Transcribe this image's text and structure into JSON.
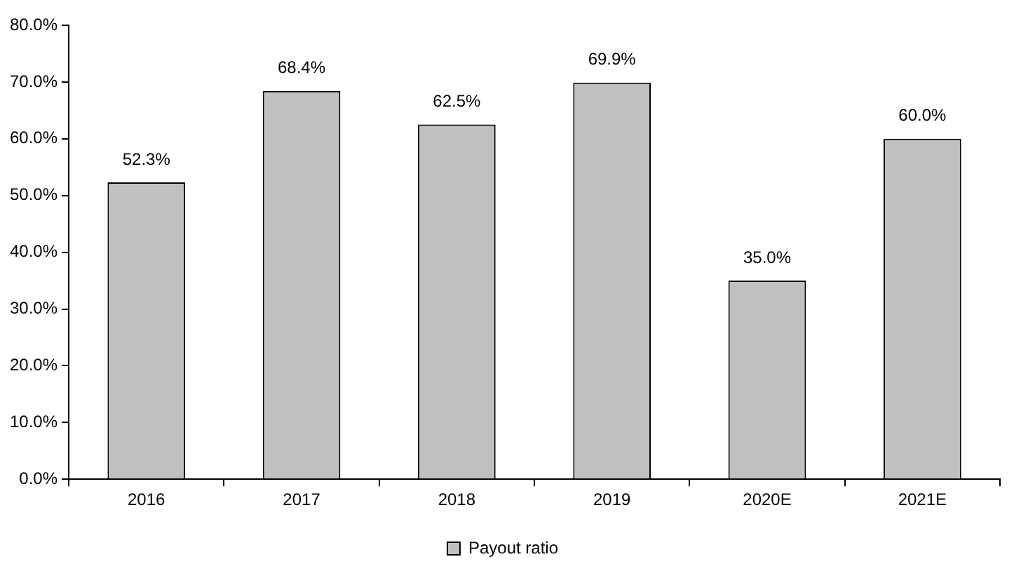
{
  "chart_data": {
    "type": "bar",
    "categories": [
      "2016",
      "2017",
      "2018",
      "2019",
      "2020E",
      "2021E"
    ],
    "series": [
      {
        "name": "Payout ratio",
        "color": "#c0c0c0",
        "values": [
          52.3,
          68.4,
          62.5,
          69.9,
          35.0,
          60.0
        ],
        "value_labels": [
          "52.3%",
          "68.4%",
          "62.5%",
          "69.9%",
          "35.0%",
          "60.0%"
        ]
      }
    ],
    "ylim": [
      0,
      80
    ],
    "yticks": [
      {
        "value": 0,
        "label": "0.0%"
      },
      {
        "value": 10,
        "label": "10.0%"
      },
      {
        "value": 20,
        "label": "20.0%"
      },
      {
        "value": 30,
        "label": "30.0%"
      },
      {
        "value": 40,
        "label": "40.0%"
      },
      {
        "value": 50,
        "label": "50.0%"
      },
      {
        "value": 60,
        "label": "60.0%"
      },
      {
        "value": 70,
        "label": "70.0%"
      },
      {
        "value": 80,
        "label": "80.0%"
      }
    ],
    "grid": false,
    "legend": "bottom"
  }
}
